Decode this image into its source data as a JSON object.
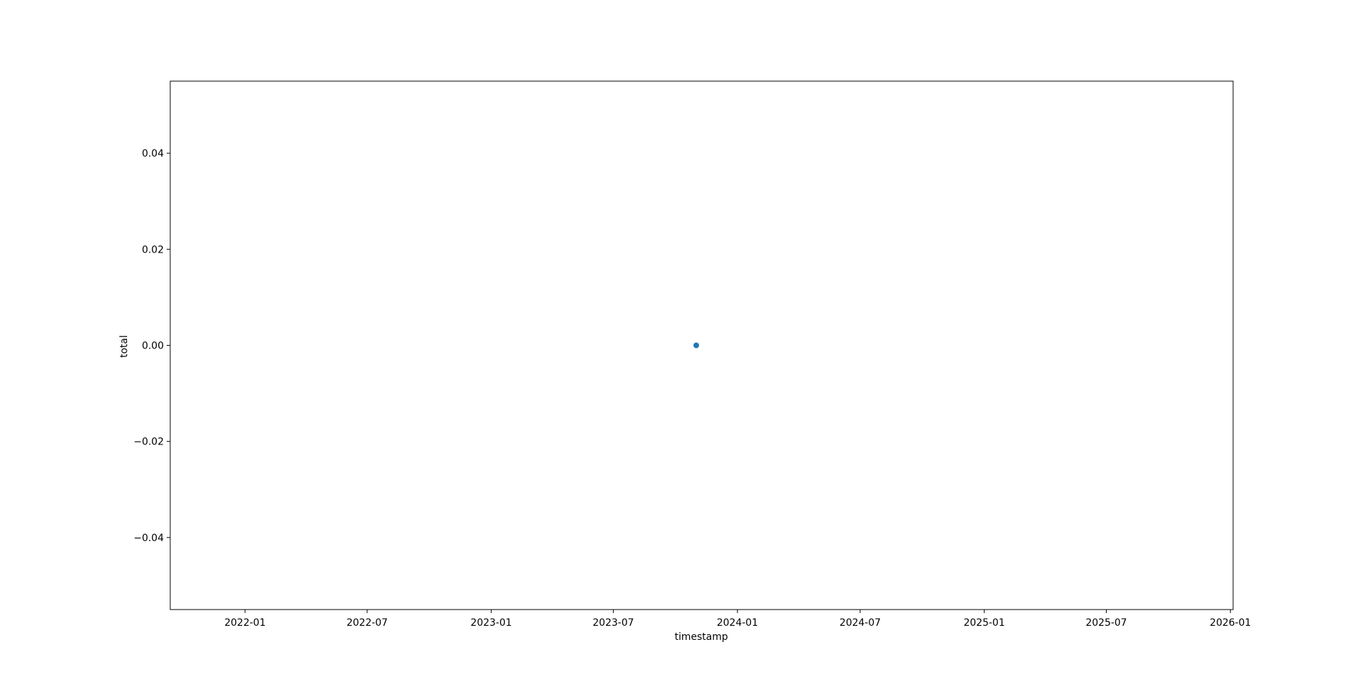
{
  "chart_data": {
    "type": "scatter",
    "title": "",
    "xlabel": "timestamp",
    "ylabel": "total",
    "x_axis_type": "date",
    "xlim": [
      "2021-09-12",
      "2026-01-05"
    ],
    "ylim": [
      -0.055,
      0.055
    ],
    "x_ticks": [
      "2022-01",
      "2022-07",
      "2023-01",
      "2023-07",
      "2024-01",
      "2024-07",
      "2025-01",
      "2025-07",
      "2026-01"
    ],
    "y_ticks": [
      {
        "value": 0.04,
        "label": "0.04"
      },
      {
        "value": 0.02,
        "label": "0.02"
      },
      {
        "value": 0.0,
        "label": "0.00"
      },
      {
        "value": -0.02,
        "label": "−0.02"
      },
      {
        "value": -0.04,
        "label": "−0.04"
      }
    ],
    "grid": false,
    "legend": false,
    "series": [
      {
        "color": "#1f77b4",
        "points": [
          {
            "x": "2023-11-01",
            "y": 0
          }
        ]
      }
    ]
  }
}
